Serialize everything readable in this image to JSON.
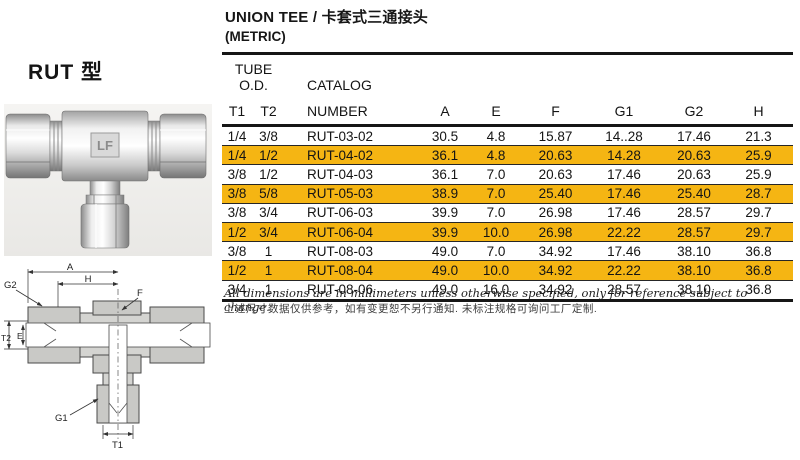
{
  "page": {
    "model_label": "RUT 型",
    "title": "UNION  TEE  /  卡套式三通接头",
    "subtitle": "(METRIC)"
  },
  "photo": {
    "stamp": "LF"
  },
  "table": {
    "header": {
      "tube_od": "TUBE O.D.",
      "catalog_line1": "CATALOG",
      "catalog_line2": "NUMBER",
      "t1": "T1",
      "t2": "T2",
      "cols": [
        "A",
        "E",
        "F",
        "G1",
        "G2",
        "H"
      ]
    },
    "rows": [
      {
        "t1": "1/4",
        "t2": "3/8",
        "catalog": "RUT-03-02",
        "a": "30.5",
        "e": "4.8",
        "f": "15.87",
        "g1": "14..28",
        "g2": "17.46",
        "h": "21.3",
        "highlight": false
      },
      {
        "t1": "1/4",
        "t2": "1/2",
        "catalog": "RUT-04-02",
        "a": "36.1",
        "e": "4.8",
        "f": "20.63",
        "g1": "14.28",
        "g2": "20.63",
        "h": "25.9",
        "highlight": true
      },
      {
        "t1": "3/8",
        "t2": "1/2",
        "catalog": "RUT-04-03",
        "a": "36.1",
        "e": "7.0",
        "f": "20.63",
        "g1": "17.46",
        "g2": "20.63",
        "h": "25.9",
        "highlight": false
      },
      {
        "t1": "3/8",
        "t2": "5/8",
        "catalog": "RUT-05-03",
        "a": "38.9",
        "e": "7.0",
        "f": "25.40",
        "g1": "17.46",
        "g2": "25.40",
        "h": "28.7",
        "highlight": true
      },
      {
        "t1": "3/8",
        "t2": "3/4",
        "catalog": "RUT-06-03",
        "a": "39.9",
        "e": "7.0",
        "f": "26.98",
        "g1": "17.46",
        "g2": "28.57",
        "h": "29.7",
        "highlight": false
      },
      {
        "t1": "1/2",
        "t2": "3/4",
        "catalog": "RUT-06-04",
        "a": "39.9",
        "e": "10.0",
        "f": "26.98",
        "g1": "22.22",
        "g2": "28.57",
        "h": "29.7",
        "highlight": true
      },
      {
        "t1": "3/8",
        "t2": "1",
        "catalog": "RUT-08-03",
        "a": "49.0",
        "e": "7.0",
        "f": "34.92",
        "g1": "17.46",
        "g2": "38.10",
        "h": "36.8",
        "highlight": false
      },
      {
        "t1": "1/2",
        "t2": "1",
        "catalog": "RUT-08-04",
        "a": "49.0",
        "e": "10.0",
        "f": "34.92",
        "g1": "22.22",
        "g2": "38.10",
        "h": "36.8",
        "highlight": true
      },
      {
        "t1": "3/4",
        "t2": "1",
        "catalog": "RUT-08-06",
        "a": "49.0",
        "e": "16.0",
        "f": "34.92",
        "g1": "28.57",
        "g2": "38.10",
        "h": "36.8",
        "highlight": false
      }
    ]
  },
  "footer": {
    "note_en": "All dimensions are in millimeters unless otherwise specified, only for reference subject to change.",
    "note_zh": "上述尺寸数据仅供参考，如有变更恕不另行通知. 未标注规格可询问工厂定制."
  },
  "drawing": {
    "labels": {
      "a": "A",
      "h": "H",
      "g2": "G2",
      "f": "F",
      "t2": "T2",
      "e": "E",
      "g1": "G1",
      "t1": "T1"
    }
  },
  "colors": {
    "highlight": "#F5B513"
  }
}
